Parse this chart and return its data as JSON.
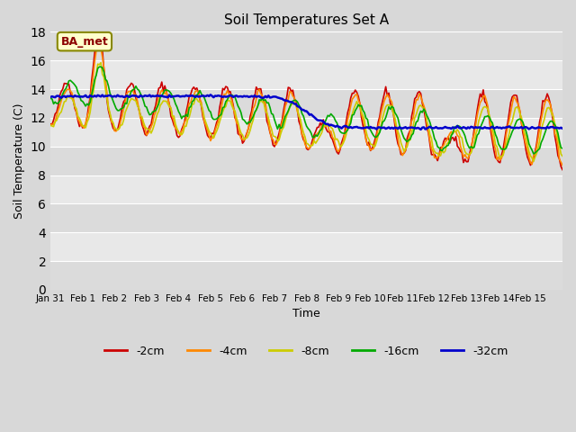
{
  "title": "Soil Temperatures Set A",
  "xlabel": "Time",
  "ylabel": "Soil Temperature (C)",
  "ylim": [
    0,
    18
  ],
  "yticks": [
    0,
    2,
    4,
    6,
    8,
    10,
    12,
    14,
    16,
    18
  ],
  "colors": {
    "-2cm": "#cc0000",
    "-4cm": "#ff8800",
    "-8cm": "#cccc00",
    "-16cm": "#00aa00",
    "-32cm": "#0000cc"
  },
  "legend_labels": [
    "-2cm",
    "-4cm",
    "-8cm",
    "-16cm",
    "-32cm"
  ],
  "annotation_text": "BA_met",
  "annotation_bg": "#ffffcc",
  "annotation_border": "#888800",
  "x_tick_labels": [
    "Jan 31",
    "Feb 1",
    "Feb 2",
    "Feb 3",
    "Feb 4",
    "Feb 5",
    "Feb 6",
    "Feb 7",
    "Feb 8",
    "Feb 9",
    "Feb 10",
    "Feb 11",
    "Feb 12",
    "Feb 13",
    "Feb 14",
    "Feb 15"
  ],
  "n_points": 337
}
